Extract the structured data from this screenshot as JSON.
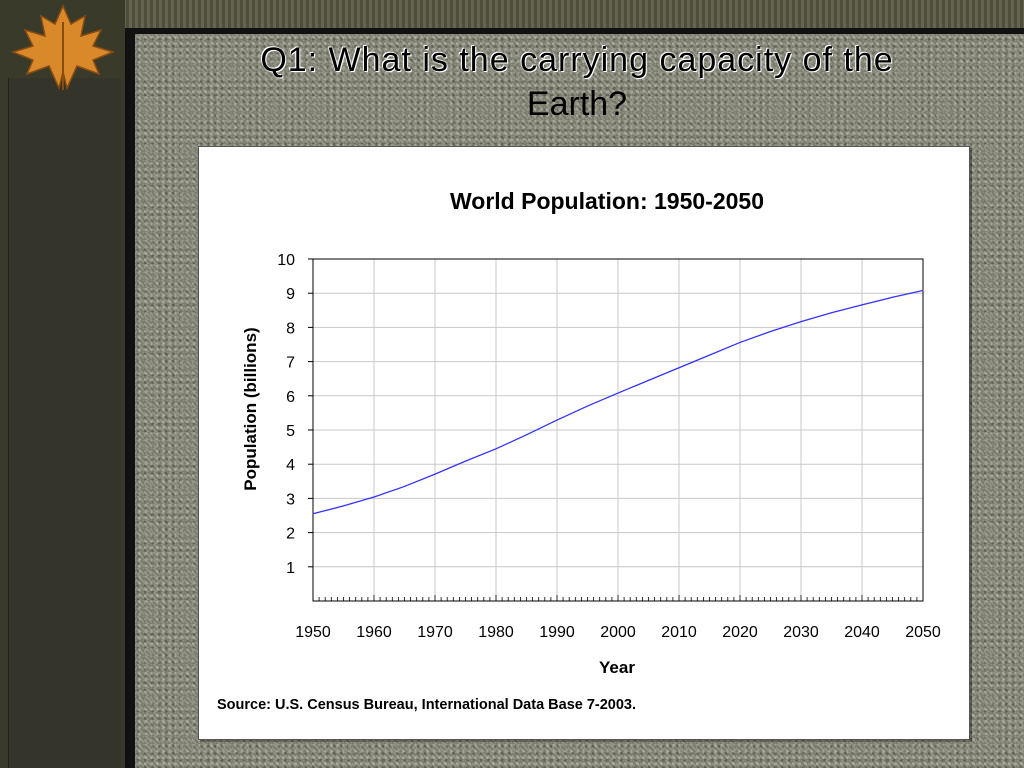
{
  "slide": {
    "title_line1": "Q1: What is the carrying capacity of the",
    "title_line2": "Earth?"
  },
  "colors": {
    "line": "#3333ff",
    "grid": "#c8c8c8",
    "frame": "#111111"
  },
  "chart_data": {
    "type": "line",
    "title": "World Population: 1950-2050",
    "xlabel": "Year",
    "ylabel": "Population (billions)",
    "xlim": [
      1950,
      2050
    ],
    "ylim": [
      0,
      10
    ],
    "xticks": [
      1950,
      1960,
      1970,
      1980,
      1990,
      2000,
      2010,
      2020,
      2030,
      2040,
      2050
    ],
    "yticks": [
      1,
      2,
      3,
      4,
      5,
      6,
      7,
      8,
      9,
      10
    ],
    "grid": true,
    "legend": "none",
    "source": "Source: U.S. Census Bureau, International Data Base 7-2003.",
    "series": [
      {
        "x": [
          1950,
          1955,
          1960,
          1965,
          1970,
          1975,
          1980,
          1985,
          1990,
          1995,
          2000,
          2005,
          2010,
          2015,
          2020,
          2025,
          2030,
          2035,
          2040,
          2045,
          2050
        ],
        "values": [
          2.55,
          2.78,
          3.04,
          3.35,
          3.71,
          4.09,
          4.45,
          4.86,
          5.29,
          5.7,
          6.08,
          6.45,
          6.82,
          7.19,
          7.56,
          7.88,
          8.17,
          8.43,
          8.66,
          8.88,
          9.08
        ]
      }
    ]
  }
}
